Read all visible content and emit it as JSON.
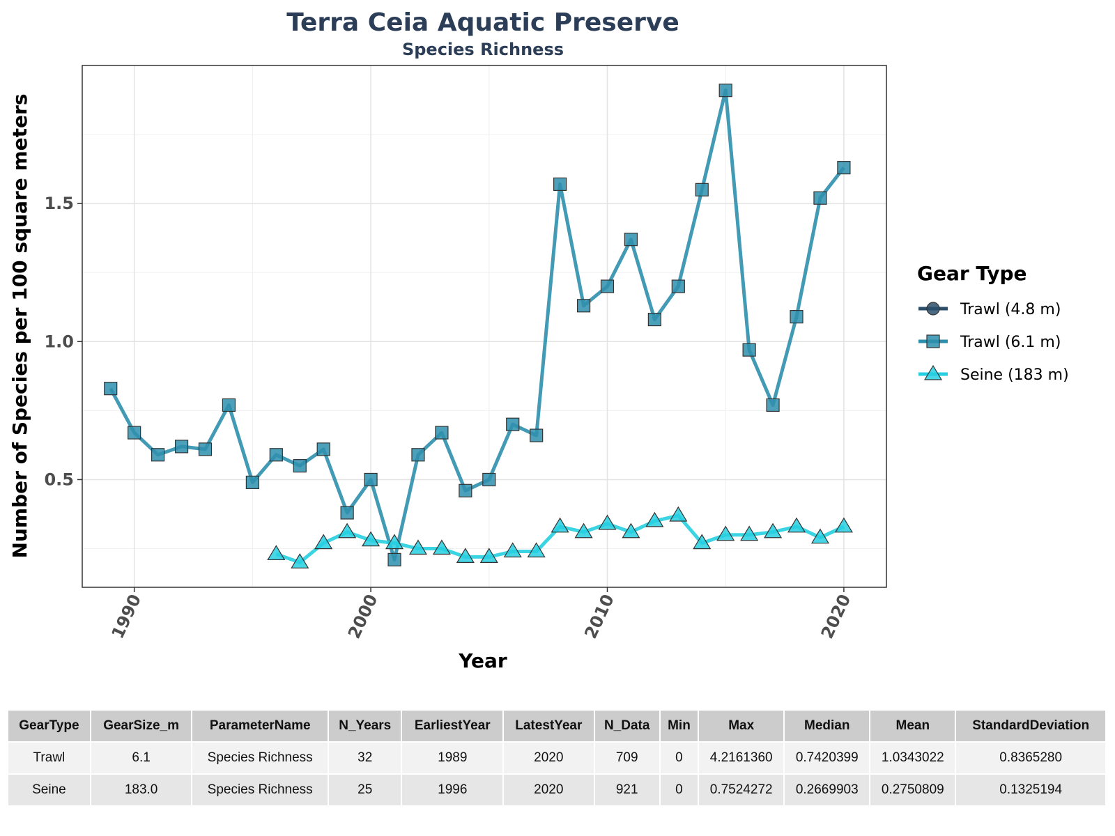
{
  "chart_data": {
    "type": "line",
    "title": "Terra Ceia Aquatic Preserve",
    "subtitle": "Species Richness",
    "xlabel": "Year",
    "ylabel": "Number of Species per 100 square meters",
    "xlim": [
      1987.8,
      2021.8
    ],
    "ylim": [
      0.11,
      2.0
    ],
    "x_ticks": [
      1990,
      2000,
      2010,
      2020
    ],
    "y_ticks": [
      0.5,
      1.0,
      1.5
    ],
    "y_tick_labels": [
      "0.5",
      "1.0",
      "1.5"
    ],
    "grid": true,
    "legend_title": "Gear Type",
    "legend_position": "right",
    "series": [
      {
        "name": "Trawl (4.8 m)",
        "color": "#2c4f6b",
        "marker": "circle",
        "x": [],
        "y": []
      },
      {
        "name": "Trawl (6.1 m)",
        "color": "#2e8fad",
        "marker": "square",
        "x": [
          1989,
          1990,
          1991,
          1992,
          1993,
          1994,
          1995,
          1996,
          1997,
          1998,
          1999,
          2000,
          2001,
          2002,
          2003,
          2004,
          2005,
          2006,
          2007,
          2008,
          2009,
          2010,
          2011,
          2012,
          2013,
          2014,
          2015,
          2016,
          2017,
          2018,
          2019,
          2020
        ],
        "y": [
          0.83,
          0.67,
          0.59,
          0.62,
          0.61,
          0.77,
          0.49,
          0.59,
          0.55,
          0.61,
          0.38,
          0.5,
          0.21,
          0.59,
          0.67,
          0.46,
          0.5,
          0.7,
          0.66,
          1.57,
          1.13,
          1.2,
          1.37,
          1.08,
          1.2,
          1.55,
          1.91,
          0.97,
          0.77,
          1.09,
          1.52,
          1.63
        ]
      },
      {
        "name": "Seine (183 m)",
        "color": "#26cfe0",
        "marker": "triangle",
        "x": [
          1996,
          1997,
          1998,
          1999,
          2000,
          2001,
          2002,
          2003,
          2004,
          2005,
          2006,
          2007,
          2008,
          2009,
          2010,
          2011,
          2012,
          2013,
          2014,
          2015,
          2016,
          2017,
          2018,
          2019,
          2020
        ],
        "y": [
          0.23,
          0.2,
          0.27,
          0.31,
          0.28,
          0.27,
          0.25,
          0.25,
          0.22,
          0.22,
          0.24,
          0.24,
          0.33,
          0.31,
          0.34,
          0.31,
          0.35,
          0.37,
          0.27,
          0.3,
          0.3,
          0.31,
          0.33,
          0.29,
          0.33
        ]
      }
    ]
  },
  "table": {
    "headers": [
      "GearType",
      "GearSize_m",
      "ParameterName",
      "N_Years",
      "EarliestYear",
      "LatestYear",
      "N_Data",
      "Min",
      "Max",
      "Median",
      "Mean",
      "StandardDeviation"
    ],
    "rows": [
      [
        "Trawl",
        "6.1",
        "Species Richness",
        "32",
        "1989",
        "2020",
        "709",
        "0",
        "4.2161360",
        "0.7420399",
        "1.0343022",
        "0.8365280"
      ],
      [
        "Seine",
        "183.0",
        "Species Richness",
        "25",
        "1996",
        "2020",
        "921",
        "0",
        "0.7524272",
        "0.2669903",
        "0.2750809",
        "0.1325194"
      ]
    ]
  }
}
